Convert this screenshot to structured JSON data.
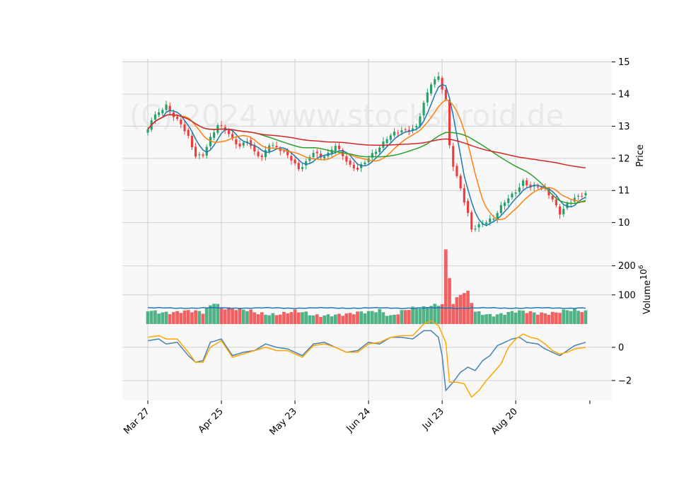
{
  "watermark": "(C) 2024 www.stocksdroid.de",
  "chart_data": [
    {
      "panel": "price",
      "type": "candlestick",
      "ylabel": "Price",
      "ylim": [
        9.2,
        15.1
      ],
      "yticks": [
        10,
        11,
        12,
        13,
        14,
        15
      ],
      "x_tick_labels": [
        "Mar 27",
        "Apr 25",
        "May 23",
        "Jun 24",
        "Jul 23",
        "Aug 20"
      ],
      "x_tick_index": [
        0,
        20,
        40,
        60,
        80,
        100
      ],
      "n_bars": 120,
      "grid": true,
      "up_color": "#26a069",
      "down_color": "#ef3b3b",
      "close_anchors": [
        [
          0,
          12.9
        ],
        [
          1,
          13.2
        ],
        [
          3,
          13.4
        ],
        [
          5,
          13.6
        ],
        [
          7,
          13.3
        ],
        [
          9,
          13.1
        ],
        [
          11,
          12.7
        ],
        [
          13,
          12.1
        ],
        [
          15,
          12.1
        ],
        [
          17,
          12.6
        ],
        [
          19,
          13.0
        ],
        [
          21,
          12.9
        ],
        [
          23,
          12.6
        ],
        [
          25,
          12.4
        ],
        [
          27,
          12.6
        ],
        [
          29,
          12.2
        ],
        [
          31,
          12.0
        ],
        [
          33,
          12.4
        ],
        [
          35,
          12.3
        ],
        [
          37,
          12.2
        ],
        [
          39,
          12.0
        ],
        [
          41,
          11.7
        ],
        [
          43,
          11.9
        ],
        [
          45,
          12.2
        ],
        [
          47,
          12.0
        ],
        [
          49,
          12.1
        ],
        [
          51,
          12.4
        ],
        [
          53,
          12.1
        ],
        [
          55,
          11.8
        ],
        [
          57,
          11.7
        ],
        [
          59,
          11.9
        ],
        [
          61,
          12.1
        ],
        [
          63,
          12.3
        ],
        [
          65,
          12.6
        ],
        [
          67,
          12.8
        ],
        [
          69,
          12.9
        ],
        [
          71,
          12.9
        ],
        [
          73,
          13.0
        ],
        [
          75,
          13.7
        ],
        [
          77,
          14.3
        ],
        [
          79,
          14.5
        ],
        [
          81,
          13.8
        ],
        [
          82,
          12.4
        ],
        [
          83,
          11.8
        ],
        [
          85,
          11.1
        ],
        [
          87,
          10.3
        ],
        [
          88,
          9.8
        ],
        [
          90,
          9.9
        ],
        [
          92,
          10.0
        ],
        [
          94,
          10.1
        ],
        [
          96,
          10.5
        ],
        [
          98,
          10.8
        ],
        [
          100,
          11.0
        ],
        [
          102,
          11.3
        ],
        [
          104,
          11.1
        ],
        [
          106,
          11.1
        ],
        [
          108,
          11.0
        ],
        [
          110,
          10.7
        ],
        [
          112,
          10.3
        ],
        [
          114,
          10.6
        ],
        [
          116,
          10.8
        ],
        [
          119,
          10.9
        ]
      ],
      "series": [
        {
          "color": "#1f77b4",
          "window": 5
        },
        {
          "color": "#ff7f0e",
          "window": 10
        },
        {
          "color": "#2ca02c",
          "window": 30
        },
        {
          "color": "#d62728",
          "window": 80
        }
      ]
    },
    {
      "panel": "volume",
      "type": "bar",
      "ylabel": "Volume",
      "ylabel_exponent": "10^6",
      "ylim": [
        0,
        260
      ],
      "yticks": [
        100,
        200
      ],
      "volume_profile": [
        [
          0,
          45
        ],
        [
          10,
          42
        ],
        [
          15,
          38
        ],
        [
          18,
          78
        ],
        [
          20,
          62
        ],
        [
          30,
          35
        ],
        [
          35,
          38
        ],
        [
          40,
          42
        ],
        [
          45,
          28
        ],
        [
          50,
          36
        ],
        [
          55,
          32
        ],
        [
          60,
          40
        ],
        [
          63,
          52
        ],
        [
          66,
          30
        ],
        [
          70,
          45
        ],
        [
          72,
          50
        ],
        [
          75,
          55
        ],
        [
          77,
          68
        ],
        [
          79,
          70
        ],
        [
          80,
          75
        ],
        [
          81,
          255
        ],
        [
          83,
          70
        ],
        [
          85,
          100
        ],
        [
          87,
          105
        ],
        [
          89,
          40
        ],
        [
          93,
          35
        ],
        [
          100,
          40
        ],
        [
          105,
          38
        ],
        [
          110,
          42
        ],
        [
          114,
          45
        ],
        [
          119,
          40
        ]
      ],
      "avg_level": 55,
      "line_color": "#1f77b4"
    },
    {
      "panel": "oscillator",
      "type": "line",
      "ylim": [
        -3.2,
        1.4
      ],
      "yticks": [
        -2,
        0
      ],
      "series": [
        {
          "color": "#4682b4",
          "anchors": [
            [
              0,
              0.4
            ],
            [
              3,
              0.5
            ],
            [
              5,
              0.2
            ],
            [
              8,
              0.3
            ],
            [
              11,
              -0.5
            ],
            [
              13,
              -0.9
            ],
            [
              15,
              -0.8
            ],
            [
              17,
              0.3
            ],
            [
              20,
              0.5
            ],
            [
              23,
              -0.5
            ],
            [
              26,
              -0.3
            ],
            [
              29,
              -0.2
            ],
            [
              32,
              0.2
            ],
            [
              35,
              0.0
            ],
            [
              38,
              -0.1
            ],
            [
              42,
              -0.5
            ],
            [
              45,
              0.2
            ],
            [
              48,
              0.3
            ],
            [
              51,
              0.0
            ],
            [
              54,
              -0.3
            ],
            [
              57,
              -0.2
            ],
            [
              60,
              0.3
            ],
            [
              63,
              0.2
            ],
            [
              66,
              0.6
            ],
            [
              69,
              0.6
            ],
            [
              72,
              0.5
            ],
            [
              75,
              1.0
            ],
            [
              77,
              1.0
            ],
            [
              79,
              0.6
            ],
            [
              80,
              -0.5
            ],
            [
              81,
              -2.6
            ],
            [
              83,
              -2.1
            ],
            [
              85,
              -1.5
            ],
            [
              87,
              -1.2
            ],
            [
              89,
              -1.4
            ],
            [
              91,
              -0.8
            ],
            [
              93,
              -0.5
            ],
            [
              95,
              0.1
            ],
            [
              97,
              0.3
            ],
            [
              99,
              0.5
            ],
            [
              101,
              0.6
            ],
            [
              103,
              0.3
            ],
            [
              106,
              0.2
            ],
            [
              108,
              -0.1
            ],
            [
              110,
              -0.3
            ],
            [
              112,
              -0.5
            ],
            [
              114,
              -0.2
            ],
            [
              116,
              0.1
            ],
            [
              119,
              0.3
            ]
          ]
        },
        {
          "color": "#ffa500",
          "anchors": [
            [
              0,
              0.6
            ],
            [
              3,
              0.7
            ],
            [
              5,
              0.5
            ],
            [
              8,
              0.5
            ],
            [
              11,
              -0.3
            ],
            [
              13,
              -0.9
            ],
            [
              15,
              -0.9
            ],
            [
              17,
              0.0
            ],
            [
              20,
              0.4
            ],
            [
              23,
              -0.6
            ],
            [
              26,
              -0.4
            ],
            [
              29,
              -0.2
            ],
            [
              32,
              0.0
            ],
            [
              35,
              -0.2
            ],
            [
              38,
              -0.2
            ],
            [
              42,
              -0.6
            ],
            [
              45,
              0.1
            ],
            [
              48,
              0.2
            ],
            [
              51,
              0.0
            ],
            [
              54,
              -0.3
            ],
            [
              57,
              -0.3
            ],
            [
              60,
              0.2
            ],
            [
              63,
              0.3
            ],
            [
              66,
              0.6
            ],
            [
              69,
              0.7
            ],
            [
              72,
              0.7
            ],
            [
              75,
              1.4
            ],
            [
              77,
              1.6
            ],
            [
              79,
              1.3
            ],
            [
              81,
              0.3
            ],
            [
              82,
              -2.1
            ],
            [
              84,
              -2.1
            ],
            [
              86,
              -2.2
            ],
            [
              88,
              -3.0
            ],
            [
              90,
              -2.6
            ],
            [
              92,
              -2.0
            ],
            [
              94,
              -1.5
            ],
            [
              96,
              -1.0
            ],
            [
              98,
              0.0
            ],
            [
              100,
              0.5
            ],
            [
              102,
              0.8
            ],
            [
              104,
              0.6
            ],
            [
              106,
              0.5
            ],
            [
              108,
              0.2
            ],
            [
              110,
              -0.2
            ],
            [
              112,
              -0.4
            ],
            [
              114,
              -0.3
            ],
            [
              116,
              -0.1
            ],
            [
              119,
              0.0
            ]
          ]
        }
      ]
    }
  ]
}
